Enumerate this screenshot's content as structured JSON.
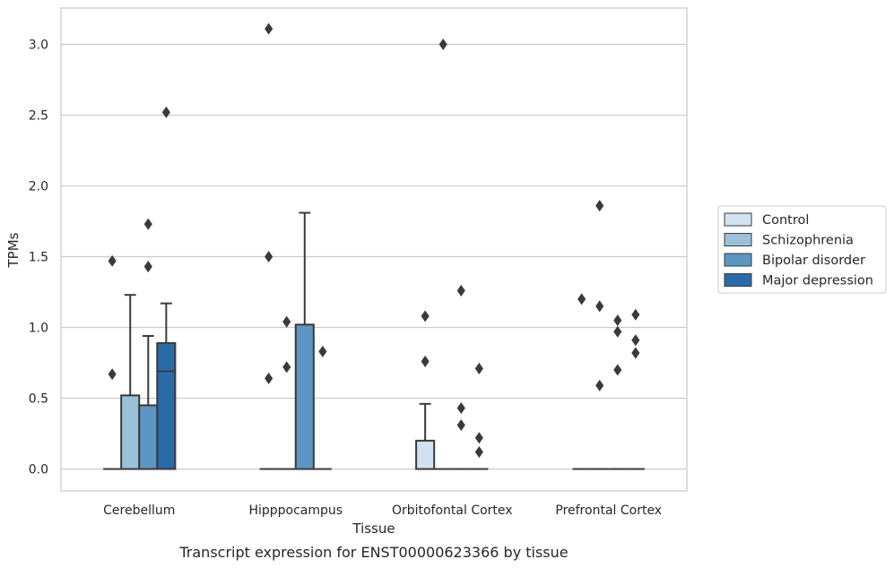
{
  "chart_data": {
    "type": "box",
    "caption": "Transcript expression for ENST00000623366 by tissue",
    "xlabel": "Tissue",
    "ylabel": "TPMs",
    "ylim": [
      -0.15,
      3.26
    ],
    "yticks": [
      "0.0",
      "0.5",
      "1.0",
      "1.5",
      "2.0",
      "2.5",
      "3.0"
    ],
    "ytick_values": [
      0,
      0.5,
      1.0,
      1.5,
      2.0,
      2.5,
      3.0
    ],
    "grid": true,
    "legend_position": "right",
    "categories": [
      "Cerebellum",
      "Hipppocampus",
      "Orbitofontal Cortex",
      "Prefrontal Cortex"
    ],
    "series": [
      {
        "name": "Control",
        "color": "#d0e1f2",
        "boxes": [
          {
            "q1": 0,
            "median": 0,
            "q3": 0,
            "whisker_low": 0,
            "whisker_high": 0,
            "outliers": [
              0.67,
              1.47
            ]
          },
          {
            "q1": 0,
            "median": 0,
            "q3": 0,
            "whisker_low": 0,
            "whisker_high": 0,
            "outliers": [
              0.64,
              1.5,
              3.11
            ]
          },
          {
            "q1": 0,
            "median": 0,
            "q3": 0.2,
            "whisker_low": 0,
            "whisker_high": 0.46,
            "outliers": [
              0.76,
              1.08
            ]
          },
          {
            "q1": 0,
            "median": 0,
            "q3": 0,
            "whisker_low": 0,
            "whisker_high": 0,
            "outliers": [
              1.2
            ]
          }
        ]
      },
      {
        "name": "Schizophrenia",
        "color": "#9ac1d8",
        "boxes": [
          {
            "q1": 0,
            "median": 0,
            "q3": 0.52,
            "whisker_low": 0,
            "whisker_high": 1.23,
            "outliers": []
          },
          {
            "q1": 0,
            "median": 0,
            "q3": 0,
            "whisker_low": 0,
            "whisker_high": 0,
            "outliers": [
              0.72,
              1.04
            ]
          },
          {
            "q1": 0,
            "median": 0,
            "q3": 0,
            "whisker_low": 0,
            "whisker_high": 0,
            "outliers": [
              3.0
            ]
          },
          {
            "q1": 0,
            "median": 0,
            "q3": 0,
            "whisker_low": 0,
            "whisker_high": 0,
            "outliers": [
              0.59,
              1.15,
              1.86
            ]
          }
        ]
      },
      {
        "name": "Bipolar disorder",
        "color": "#5b97c2",
        "boxes": [
          {
            "q1": 0,
            "median": 0,
            "q3": 0.45,
            "whisker_low": 0,
            "whisker_high": 0.94,
            "outliers": [
              1.43,
              1.73
            ]
          },
          {
            "q1": 0,
            "median": 0,
            "q3": 1.02,
            "whisker_low": 0,
            "whisker_high": 1.81,
            "outliers": []
          },
          {
            "q1": 0,
            "median": 0,
            "q3": 0,
            "whisker_low": 0,
            "whisker_high": 0,
            "outliers": [
              0.31,
              0.43,
              1.26
            ]
          },
          {
            "q1": 0,
            "median": 0,
            "q3": 0,
            "whisker_low": 0,
            "whisker_high": 0,
            "outliers": [
              0.7,
              0.97,
              1.05
            ]
          }
        ]
      },
      {
        "name": "Major depression",
        "color": "#2b6aa8",
        "boxes": [
          {
            "q1": 0,
            "median": 0.69,
            "q3": 0.89,
            "whisker_low": 0,
            "whisker_high": 1.17,
            "outliers": [
              2.52
            ]
          },
          {
            "q1": 0,
            "median": 0,
            "q3": 0,
            "whisker_low": 0,
            "whisker_high": 0,
            "outliers": [
              0.83
            ]
          },
          {
            "q1": 0,
            "median": 0,
            "q3": 0,
            "whisker_low": 0,
            "whisker_high": 0,
            "outliers": [
              0.12,
              0.22,
              0.71
            ]
          },
          {
            "q1": 0,
            "median": 0,
            "q3": 0,
            "whisker_low": 0,
            "whisker_high": 0,
            "outliers": [
              0.82,
              0.91,
              1.09
            ]
          }
        ]
      }
    ]
  }
}
